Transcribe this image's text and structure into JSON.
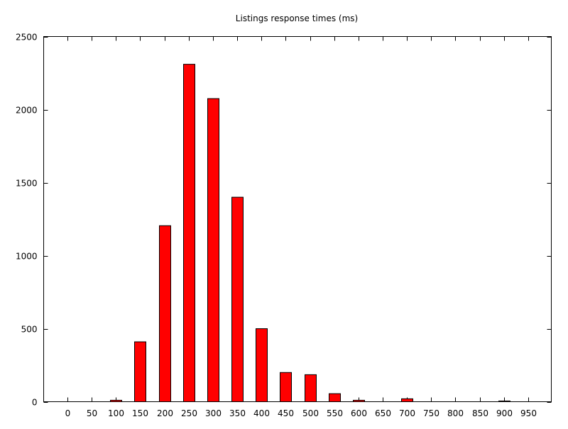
{
  "chart_data": {
    "type": "bar",
    "title": "Listings response times (ms)",
    "xlabel": "",
    "ylabel": "",
    "categories": [
      "0",
      "50",
      "100",
      "150",
      "200",
      "250",
      "300",
      "350",
      "400",
      "450",
      "500",
      "550",
      "600",
      "650",
      "700",
      "750",
      "800",
      "850",
      "900",
      "950"
    ],
    "series": [
      {
        "values": [
          0,
          0,
          10,
          410,
          1205,
          2310,
          2075,
          1400,
          500,
          200,
          185,
          55,
          10,
          0,
          20,
          0,
          0,
          0,
          5,
          0
        ]
      }
    ],
    "ylim": [
      0,
      2500
    ],
    "yticks": [
      0,
      500,
      1000,
      1500,
      2000,
      2500
    ],
    "grid": false,
    "legend": "none",
    "colors": {
      "bar_fill": "#ff0000",
      "bar_stroke": "#000000",
      "axis": "#000000",
      "background": "#ffffff"
    }
  }
}
